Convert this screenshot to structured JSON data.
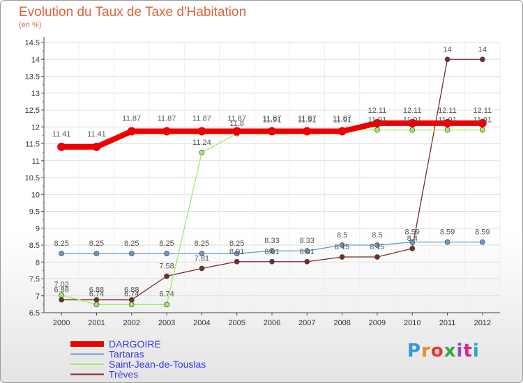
{
  "chart_data": {
    "type": "line",
    "title": "Evolution du Taux de Taxe d'Habitation",
    "unit_label": "(en %)",
    "categories": [
      "2000",
      "2001",
      "2002",
      "2003",
      "2004",
      "2005",
      "2006",
      "2007",
      "2008",
      "2009",
      "2010",
      "2011",
      "2012"
    ],
    "ylim": [
      6.5,
      14.5
    ],
    "yticks": [
      "6.5",
      "7",
      "7.5",
      "8",
      "8.5",
      "9",
      "9.5",
      "10",
      "10.5",
      "11",
      "11.5",
      "12",
      "12.5",
      "13",
      "13.5",
      "14",
      "14.5"
    ],
    "series": [
      {
        "name": "DARGOIRE",
        "color": "#ee0000",
        "values": [
          11.41,
          11.41,
          11.87,
          11.87,
          11.87,
          11.87,
          11.87,
          11.87,
          11.87,
          12.11,
          12.11,
          12.11,
          12.11
        ]
      },
      {
        "name": "Tartaras",
        "color": "#6699cc",
        "values": [
          8.25,
          8.25,
          8.25,
          8.25,
          8.25,
          8.25,
          8.33,
          8.33,
          8.5,
          8.5,
          8.59,
          8.59,
          8.59
        ]
      },
      {
        "name": "Saint-Jean-de-Touslas",
        "color": "#99ee66",
        "values": [
          7.02,
          6.74,
          6.74,
          6.74,
          11.24,
          11.8,
          11.91,
          11.91,
          11.91,
          11.91,
          11.91,
          11.91,
          11.91
        ]
      },
      {
        "name": "Trèves",
        "color": "#7a2a2a",
        "values": [
          6.88,
          6.88,
          6.88,
          7.58,
          7.81,
          8.01,
          8.01,
          8.01,
          8.15,
          8.15,
          8.4,
          14,
          14
        ]
      }
    ]
  },
  "logo": {
    "text": "Proxiti",
    "colors": [
      "#3399dd",
      "#ee8822",
      "#ee3333",
      "#33aa44",
      "#9944cc",
      "#dd2288",
      "#22aacc"
    ]
  }
}
